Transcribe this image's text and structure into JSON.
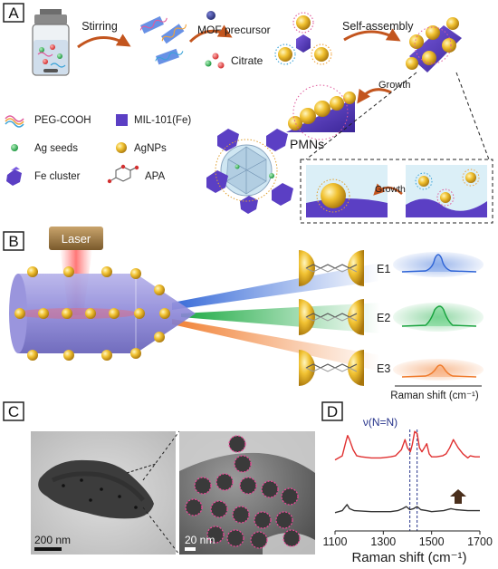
{
  "panel_labels": {
    "a": "A",
    "b": "B",
    "c": "C",
    "d": "D"
  },
  "panel_a": {
    "stirring": "Stirring",
    "mof_precursor": "MOF precursor",
    "citrate": "Citrate",
    "self_assembly": "Self-assembly",
    "growth_top": "Growth",
    "growth_inset": "Growth",
    "pmns": "PMNs",
    "legend": [
      {
        "key": "peg",
        "label": "PEG-COOH"
      },
      {
        "key": "mil",
        "label": "MIL-101(Fe)"
      },
      {
        "key": "ag_seeds",
        "label": "Ag seeds"
      },
      {
        "key": "agnps",
        "label": "AgNPs"
      },
      {
        "key": "fe_cluster",
        "label": "Fe cluster"
      },
      {
        "key": "apa",
        "label": "APA"
      }
    ],
    "colors": {
      "mof": "#5b3fc4",
      "gold": "#e5b021",
      "green": "#2bb24c",
      "arrow": "#c3551e",
      "inset_bg": "#dbeff7"
    }
  },
  "panel_b": {
    "laser": "Laser",
    "beams": [
      {
        "label": "E1",
        "color": "#3a6fd8"
      },
      {
        "label": "E2",
        "color": "#22b04a"
      },
      {
        "label": "E3",
        "color": "#f07a2a"
      }
    ],
    "raman_axis": "Raman shift (cm⁻¹)"
  },
  "panel_c": {
    "scale_left": "200 nm",
    "scale_right": "20 nm"
  },
  "panel_d": {
    "annotation": "ν(N=N)",
    "xlabel": "Raman shift (cm⁻¹)"
  },
  "chart_data": {
    "type": "line",
    "title": "",
    "xlabel": "Raman shift (cm⁻¹)",
    "ylabel": "",
    "xlim": [
      1100,
      1700
    ],
    "xticks": [
      1100,
      1300,
      1500,
      1700
    ],
    "annotations": [
      "ν(N=N)"
    ],
    "reference_lines_x": [
      1410,
      1440
    ],
    "series": [
      {
        "color": "#e03030",
        "x": [
          1100,
          1130,
          1145,
          1152,
          1160,
          1175,
          1190,
          1210,
          1250,
          1290,
          1330,
          1350,
          1375,
          1390,
          1400,
          1412,
          1420,
          1430,
          1440,
          1450,
          1460,
          1470,
          1480,
          1490,
          1500,
          1520,
          1545,
          1560,
          1575,
          1590,
          1610,
          1630,
          1650,
          1660,
          1680,
          1700
        ],
        "y": [
          0.7,
          0.74,
          0.88,
          0.94,
          0.9,
          0.8,
          0.74,
          0.73,
          0.72,
          0.72,
          0.73,
          0.74,
          0.8,
          0.9,
          0.82,
          0.78,
          0.85,
          0.98,
          0.96,
          0.82,
          0.78,
          0.82,
          0.86,
          0.76,
          0.73,
          0.73,
          0.74,
          0.76,
          0.82,
          0.9,
          0.82,
          0.76,
          0.72,
          0.74,
          0.73,
          0.73
        ]
      },
      {
        "color": "#333333",
        "x": [
          1100,
          1130,
          1150,
          1160,
          1180,
          1250,
          1300,
          1330,
          1360,
          1380,
          1395,
          1410,
          1425,
          1440,
          1455,
          1480,
          1500,
          1550,
          1580,
          1600,
          1650,
          1700
        ],
        "y": [
          0.18,
          0.2,
          0.26,
          0.22,
          0.2,
          0.19,
          0.19,
          0.19,
          0.2,
          0.22,
          0.24,
          0.21,
          0.22,
          0.24,
          0.21,
          0.2,
          0.19,
          0.2,
          0.22,
          0.21,
          0.2,
          0.2
        ]
      }
    ]
  }
}
